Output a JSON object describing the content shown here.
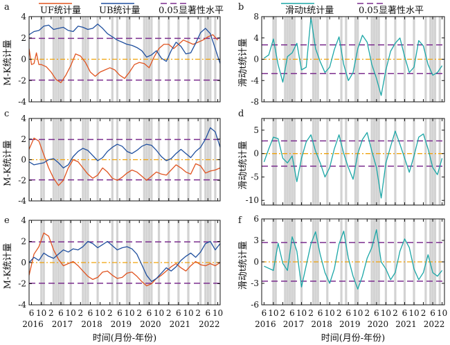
{
  "figure": {
    "xlabel": "时间(月份-年份)",
    "legend_left": [
      {
        "name": "UF统计量",
        "color": "#e0531f"
      },
      {
        "name": "UB统计量",
        "color": "#1f4f9e"
      },
      {
        "name": "0.05显著性水平",
        "color": "#7b2d8e"
      }
    ],
    "legend_right": [
      {
        "name": "滑动t统计量",
        "color": "#1aa6a6"
      },
      {
        "name": "0.05显著性水平",
        "color": "#7b2d8e"
      }
    ],
    "month_ticks": [
      "6",
      "10",
      "2"
    ],
    "year_ticks": [
      "2016",
      "2017",
      "2018",
      "2019",
      "2020",
      "2021",
      "2022"
    ]
  },
  "chart_data": [
    {
      "panel": "a",
      "type": "line",
      "ylabel": "M-K统计量",
      "ylim": [
        -4,
        4
      ],
      "yticks": [
        "4",
        "2",
        "0",
        "-2",
        "-4"
      ],
      "x_range": [
        "2016-05",
        "2022-11"
      ],
      "significance": [
        1.96,
        -1.96
      ],
      "zero_line": 0,
      "series": [
        {
          "name": "UF统计量",
          "color": "#e0531f",
          "x": [
            "2016-05",
            "2016-06",
            "2016-07",
            "2016-08",
            "2016-09",
            "2016-10",
            "2016-12",
            "2017-02",
            "2017-04",
            "2017-06",
            "2017-08",
            "2017-10",
            "2017-12",
            "2018-02",
            "2018-04",
            "2018-06",
            "2018-08",
            "2018-10",
            "2018-12",
            "2019-02",
            "2019-04",
            "2019-06",
            "2019-08",
            "2019-10",
            "2019-12",
            "2020-02",
            "2020-04",
            "2020-06",
            "2020-08",
            "2020-10",
            "2020-12",
            "2021-02",
            "2021-04",
            "2021-06",
            "2021-08",
            "2021-10",
            "2021-12",
            "2022-02",
            "2022-04",
            "2022-06",
            "2022-08",
            "2022-10"
          ],
          "values": [
            1.0,
            -0.5,
            -0.4,
            0.6,
            -0.5,
            -0.5,
            -0.7,
            -1.2,
            -1.9,
            -2.2,
            -1.5,
            -0.6,
            0.5,
            0.3,
            -0.3,
            -1.2,
            -1.6,
            -1.2,
            -1.0,
            -0.8,
            -1.0,
            -1.5,
            -1.8,
            -1.2,
            -0.5,
            -0.3,
            -0.4,
            -0.8,
            0.2,
            1.0,
            1.4,
            1.4,
            1.0,
            1.4,
            1.8,
            1.6,
            1.4,
            1.6,
            1.8,
            2.1,
            2.3,
            1.8
          ]
        },
        {
          "name": "UB统计量",
          "color": "#1f4f9e",
          "x": [
            "2016-05",
            "2016-07",
            "2016-09",
            "2016-11",
            "2017-01",
            "2017-03",
            "2017-05",
            "2017-07",
            "2017-09",
            "2017-11",
            "2018-01",
            "2018-03",
            "2018-05",
            "2018-07",
            "2018-09",
            "2018-11",
            "2019-01",
            "2019-03",
            "2019-05",
            "2019-07",
            "2019-09",
            "2019-11",
            "2020-01",
            "2020-03",
            "2020-05",
            "2020-07",
            "2020-09",
            "2020-11",
            "2021-01",
            "2021-03",
            "2021-05",
            "2021-07",
            "2021-09",
            "2021-11",
            "2022-01",
            "2022-03",
            "2022-05",
            "2022-07",
            "2022-09",
            "2022-11"
          ],
          "values": [
            2.3,
            2.6,
            2.7,
            3.1,
            3.2,
            2.8,
            2.9,
            3.0,
            2.7,
            2.6,
            3.1,
            3.0,
            2.8,
            2.9,
            3.3,
            2.9,
            2.4,
            2.1,
            1.8,
            1.6,
            1.4,
            1.3,
            1.1,
            0.8,
            0.2,
            0.4,
            0.8,
            0.1,
            -0.2,
            0.8,
            1.6,
            1.2,
            0.5,
            0.6,
            1.5,
            2.5,
            2.9,
            2.4,
            1.0,
            -0.4
          ]
        }
      ]
    },
    {
      "panel": "b",
      "type": "line",
      "ylabel": "滑动t统计量",
      "ylim": [
        -8,
        8
      ],
      "yticks": [
        "8",
        "4",
        "0",
        "-4",
        "-8"
      ],
      "x_range": [
        "2016-05",
        "2022-11"
      ],
      "significance": [
        2.7,
        -2.7
      ],
      "zero_line": 0,
      "series": [
        {
          "name": "滑动t统计量",
          "color": "#1aa6a6",
          "x": [
            "2016-06",
            "2016-08",
            "2016-10",
            "2016-12",
            "2017-02",
            "2017-04",
            "2017-06",
            "2017-08",
            "2017-10",
            "2017-12",
            "2018-02",
            "2018-04",
            "2018-06",
            "2018-08",
            "2018-10",
            "2018-12",
            "2019-02",
            "2019-04",
            "2019-06",
            "2019-08",
            "2019-10",
            "2019-12",
            "2020-02",
            "2020-04",
            "2020-06",
            "2020-08",
            "2020-10",
            "2020-12",
            "2021-02",
            "2021-04",
            "2021-06",
            "2021-08",
            "2021-10",
            "2021-12",
            "2022-02",
            "2022-04",
            "2022-06",
            "2022-08",
            "2022-10"
          ],
          "values": [
            0.2,
            0.8,
            3.8,
            -1.0,
            -4.3,
            0.5,
            1.2,
            3.0,
            -2.0,
            -1.5,
            7.8,
            2.0,
            -0.5,
            -2.5,
            -1.5,
            1.8,
            4.2,
            -1.0,
            -4.0,
            -2.5,
            2.0,
            4.5,
            3.2,
            -1.0,
            -3.6,
            -6.8,
            -2.0,
            1.5,
            3.0,
            4.0,
            0.5,
            -2.5,
            -1.5,
            3.5,
            2.5,
            -1.0,
            -3.0,
            -2.5,
            -1.2
          ]
        }
      ]
    },
    {
      "panel": "c",
      "type": "line",
      "ylabel": "M-K统计量",
      "ylim": [
        -4,
        4
      ],
      "yticks": [
        "4",
        "2",
        "0",
        "-2",
        "-4"
      ],
      "x_range": [
        "2016-05",
        "2022-11"
      ],
      "significance": [
        1.96,
        -1.96
      ],
      "zero_line": 0,
      "series": [
        {
          "name": "UF统计量",
          "color": "#e0531f",
          "x": [
            "2016-05",
            "2016-07",
            "2016-09",
            "2016-11",
            "2017-01",
            "2017-03",
            "2017-05",
            "2017-07",
            "2017-09",
            "2017-11",
            "2018-01",
            "2018-03",
            "2018-05",
            "2018-07",
            "2018-09",
            "2018-11",
            "2019-01",
            "2019-03",
            "2019-05",
            "2019-07",
            "2019-09",
            "2019-11",
            "2020-01",
            "2020-03",
            "2020-05",
            "2020-07",
            "2020-09",
            "2020-11",
            "2021-01",
            "2021-03",
            "2021-05",
            "2021-07",
            "2021-09",
            "2021-11",
            "2022-01",
            "2022-03",
            "2022-05",
            "2022-07",
            "2022-09",
            "2022-11"
          ],
          "values": [
            1.0,
            2.1,
            1.8,
            0.5,
            -0.8,
            -1.8,
            -2.5,
            -2.0,
            -0.8,
            0.0,
            -0.2,
            -0.8,
            -1.4,
            -1.8,
            -1.5,
            -0.8,
            -1.2,
            -1.8,
            -2.0,
            -1.7,
            -1.3,
            -1.0,
            -1.2,
            -1.6,
            -2.0,
            -1.6,
            -1.2,
            -1.4,
            -1.5,
            -1.0,
            -0.5,
            -0.8,
            -1.2,
            -1.4,
            -0.4,
            -0.6,
            -1.3,
            -1.1,
            -1.0,
            -0.8
          ]
        },
        {
          "name": "UB统计量",
          "color": "#1f4f9e",
          "x": [
            "2016-05",
            "2016-07",
            "2016-09",
            "2016-11",
            "2017-01",
            "2017-03",
            "2017-05",
            "2017-07",
            "2017-09",
            "2017-11",
            "2018-01",
            "2018-03",
            "2018-05",
            "2018-07",
            "2018-09",
            "2018-11",
            "2019-01",
            "2019-03",
            "2019-05",
            "2019-07",
            "2019-09",
            "2019-11",
            "2020-01",
            "2020-03",
            "2020-05",
            "2020-07",
            "2020-09",
            "2020-11",
            "2021-01",
            "2021-03",
            "2021-05",
            "2021-07",
            "2021-09",
            "2021-11",
            "2022-01",
            "2022-03",
            "2022-05",
            "2022-07",
            "2022-09",
            "2022-11"
          ],
          "values": [
            -0.2,
            -0.5,
            -0.4,
            -0.3,
            0.0,
            0.1,
            -0.3,
            -0.8,
            -0.5,
            0.3,
            0.8,
            1.1,
            0.9,
            0.4,
            -0.1,
            0.2,
            0.8,
            1.2,
            1.5,
            1.3,
            0.8,
            0.6,
            0.9,
            1.3,
            1.5,
            1.4,
            0.9,
            0.3,
            -0.1,
            0.1,
            0.6,
            1.0,
            0.6,
            0.2,
            0.8,
            1.2,
            2.0,
            3.1,
            2.7,
            1.2
          ]
        }
      ]
    },
    {
      "panel": "d",
      "type": "line",
      "ylabel": "滑动t统计量",
      "ylim": [
        -11,
        7.5
      ],
      "yticks": [
        "5",
        "0",
        "-5",
        "-10"
      ],
      "x_range": [
        "2016-05",
        "2022-11"
      ],
      "significance": [
        2.7,
        -2.7
      ],
      "zero_line": 0,
      "series": [
        {
          "name": "滑动t统计量",
          "color": "#1aa6a6",
          "x": [
            "2016-06",
            "2016-08",
            "2016-10",
            "2016-12",
            "2017-02",
            "2017-04",
            "2017-06",
            "2017-08",
            "2017-10",
            "2017-12",
            "2018-02",
            "2018-04",
            "2018-06",
            "2018-08",
            "2018-10",
            "2018-12",
            "2019-02",
            "2019-04",
            "2019-06",
            "2019-08",
            "2019-10",
            "2019-12",
            "2020-02",
            "2020-04",
            "2020-06",
            "2020-08",
            "2020-10",
            "2020-12",
            "2021-02",
            "2021-04",
            "2021-06",
            "2021-08",
            "2021-10",
            "2021-12",
            "2022-02",
            "2022-04",
            "2022-06",
            "2022-08",
            "2022-10"
          ],
          "values": [
            -1.8,
            1.0,
            3.5,
            3.2,
            -1.0,
            -2.0,
            -0.5,
            -6.0,
            -1.0,
            2.5,
            4.0,
            0.5,
            -2.0,
            -5.0,
            -3.0,
            1.0,
            4.0,
            0.0,
            -3.0,
            -5.5,
            0.0,
            3.0,
            4.5,
            0.5,
            -3.0,
            -9.5,
            -2.0,
            1.5,
            4.8,
            2.0,
            -1.0,
            -4.0,
            -0.5,
            3.5,
            4.2,
            1.0,
            -3.0,
            -4.5,
            -1.0
          ]
        }
      ]
    },
    {
      "panel": "e",
      "type": "line",
      "ylabel": "M-K统计量",
      "ylim": [
        -4,
        4
      ],
      "yticks": [
        "4",
        "2",
        "0",
        "-2",
        "-4"
      ],
      "x_range": [
        "2016-05",
        "2022-11"
      ],
      "significance": [
        1.96,
        -1.96
      ],
      "zero_line": 0,
      "series": [
        {
          "name": "UF统计量",
          "color": "#e0531f",
          "x": [
            "2016-05",
            "2016-07",
            "2016-09",
            "2016-11",
            "2017-01",
            "2017-03",
            "2017-05",
            "2017-07",
            "2017-09",
            "2017-11",
            "2018-01",
            "2018-03",
            "2018-05",
            "2018-07",
            "2018-09",
            "2018-11",
            "2019-01",
            "2019-03",
            "2019-05",
            "2019-07",
            "2019-09",
            "2019-11",
            "2020-01",
            "2020-03",
            "2020-05",
            "2020-07",
            "2020-09",
            "2020-11",
            "2021-01",
            "2021-03",
            "2021-05",
            "2021-07",
            "2021-09",
            "2021-11",
            "2022-01",
            "2022-03",
            "2022-05",
            "2022-07",
            "2022-09",
            "2022-11"
          ],
          "values": [
            -1.2,
            0.8,
            1.5,
            2.8,
            2.5,
            1.2,
            0.3,
            -0.3,
            -0.1,
            0.1,
            -0.3,
            -0.8,
            -1.3,
            -1.6,
            -1.4,
            -0.9,
            -0.8,
            -1.2,
            -1.5,
            -1.4,
            -1.0,
            -0.9,
            -1.3,
            -1.8,
            -2.2,
            -2.0,
            -1.5,
            -1.2,
            -0.8,
            -0.4,
            -0.1,
            -0.5,
            -0.8,
            -0.3,
            0.1,
            -0.2,
            -0.3,
            -0.1,
            -0.3,
            0.0
          ]
        },
        {
          "name": "UB统计量",
          "color": "#1f4f9e",
          "x": [
            "2016-05",
            "2016-07",
            "2016-09",
            "2016-11",
            "2017-01",
            "2017-03",
            "2017-05",
            "2017-07",
            "2017-09",
            "2017-11",
            "2018-01",
            "2018-03",
            "2018-05",
            "2018-07",
            "2018-09",
            "2018-11",
            "2019-01",
            "2019-03",
            "2019-05",
            "2019-07",
            "2019-09",
            "2019-11",
            "2020-01",
            "2020-03",
            "2020-05",
            "2020-07",
            "2020-09",
            "2020-11",
            "2021-01",
            "2021-03",
            "2021-05",
            "2021-07",
            "2021-09",
            "2021-11",
            "2022-01",
            "2022-03",
            "2022-05",
            "2022-07",
            "2022-09",
            "2022-11"
          ],
          "values": [
            0.0,
            0.5,
            0.2,
            0.9,
            0.6,
            0.4,
            0.8,
            1.2,
            1.0,
            1.3,
            1.2,
            1.5,
            2.0,
            1.8,
            1.4,
            1.7,
            2.0,
            1.6,
            1.2,
            1.4,
            1.5,
            1.3,
            0.8,
            -0.2,
            -1.2,
            -1.8,
            -1.5,
            -1.0,
            -0.5,
            -0.8,
            -0.4,
            0.2,
            0.6,
            0.9,
            0.5,
            1.0,
            1.8,
            2.0,
            1.2,
            1.8
          ]
        }
      ]
    },
    {
      "panel": "f",
      "type": "line",
      "ylabel": "滑动t统计量",
      "ylim": [
        -6,
        6
      ],
      "yticks": [
        "6",
        "3",
        "0",
        "-3",
        "-6"
      ],
      "x_range": [
        "2016-05",
        "2022-11"
      ],
      "significance": [
        2.7,
        -2.7
      ],
      "zero_line": 0,
      "series": [
        {
          "name": "滑动t统计量",
          "color": "#1aa6a6",
          "x": [
            "2016-06",
            "2016-08",
            "2016-10",
            "2016-12",
            "2017-02",
            "2017-04",
            "2017-06",
            "2017-08",
            "2017-10",
            "2017-12",
            "2018-02",
            "2018-04",
            "2018-06",
            "2018-08",
            "2018-10",
            "2018-12",
            "2019-02",
            "2019-04",
            "2019-06",
            "2019-08",
            "2019-10",
            "2019-12",
            "2020-02",
            "2020-04",
            "2020-06",
            "2020-08",
            "2020-10",
            "2020-12",
            "2021-02",
            "2021-04",
            "2021-06",
            "2021-08",
            "2021-10",
            "2021-12",
            "2022-02",
            "2022-04",
            "2022-06",
            "2022-08",
            "2022-10"
          ],
          "values": [
            -0.6,
            -0.9,
            -1.2,
            2.6,
            -0.2,
            -1.2,
            3.5,
            1.5,
            -3.5,
            -0.5,
            2.5,
            4.2,
            1.0,
            -1.5,
            -3.0,
            -1.0,
            2.5,
            4.3,
            0.5,
            -2.0,
            -3.8,
            -2.0,
            0.5,
            2.0,
            4.5,
            0.0,
            -1.0,
            -2.5,
            -1.5,
            1.5,
            3.2,
            2.0,
            -1.0,
            -2.5,
            -1.5,
            1.0,
            -1.5,
            -2.0,
            -1.2
          ]
        }
      ]
    }
  ]
}
